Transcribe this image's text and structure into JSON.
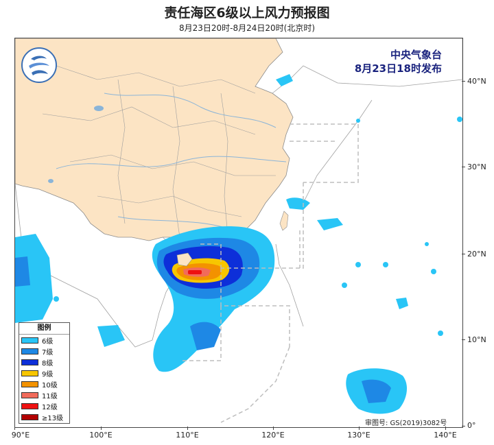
{
  "title": "责任海区6级以上风力预报图",
  "subtitle": "8月23日20时-8月24日20时(北京时)",
  "issuer": {
    "org": "中央气象台",
    "time": "8月23日18时发布"
  },
  "axes": {
    "lat_labels": [
      "40°N",
      "30°N",
      "20°N",
      "10°N",
      "0°"
    ],
    "lon_labels": [
      "90°E",
      "100°E",
      "110°E",
      "120°E",
      "130°E",
      "140°E"
    ]
  },
  "legend": {
    "title": "图例",
    "items": [
      {
        "label": "6级",
        "color": "#29c5f6"
      },
      {
        "label": "7级",
        "color": "#1e88e5"
      },
      {
        "label": "8级",
        "color": "#0d2fd9"
      },
      {
        "label": "9级",
        "color": "#f7c600"
      },
      {
        "label": "10级",
        "color": "#f39200"
      },
      {
        "label": "11级",
        "color": "#f26b5b"
      },
      {
        "label": "12级",
        "color": "#ee1111"
      },
      {
        "label": "≥13级",
        "color": "#b20000"
      }
    ]
  },
  "approval": "审图号: GS(2019)3082号",
  "colors": {
    "land_china": "#fce4c4",
    "sea": "#ffffff",
    "boundary": "#9e9e9e",
    "river": "#8ab4d8"
  }
}
